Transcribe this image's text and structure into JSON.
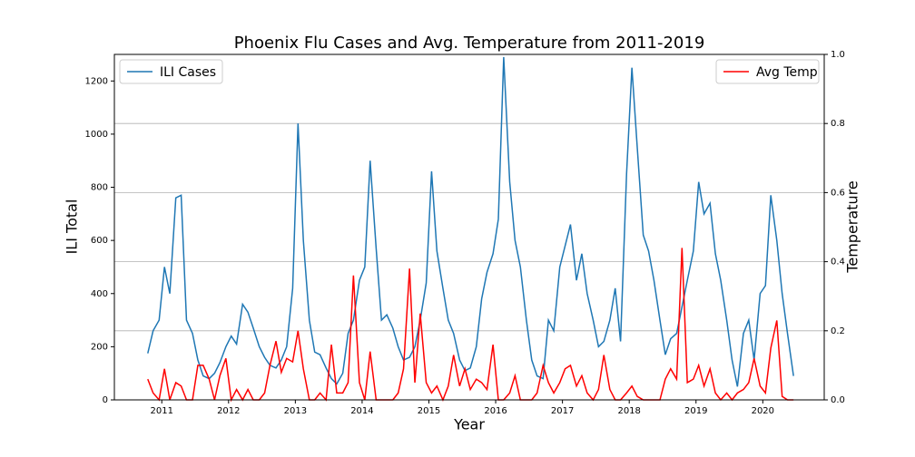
{
  "chart_data": {
    "type": "line",
    "title": "Phoenix Flu Cases and Avg. Temperature from 2011-2019",
    "x_label": "Year",
    "y_label": "ILI Total",
    "y2_label": "Temperature",
    "x": [
      2010.79,
      2010.87,
      2010.96,
      2011.04,
      2011.12,
      2011.21,
      2011.29,
      2011.37,
      2011.46,
      2011.54,
      2011.62,
      2011.71,
      2011.79,
      2011.87,
      2011.96,
      2012.04,
      2012.12,
      2012.21,
      2012.29,
      2012.37,
      2012.46,
      2012.54,
      2012.62,
      2012.71,
      2012.79,
      2012.87,
      2012.96,
      2013.04,
      2013.12,
      2013.21,
      2013.29,
      2013.37,
      2013.46,
      2013.54,
      2013.62,
      2013.71,
      2013.79,
      2013.87,
      2013.96,
      2014.04,
      2014.12,
      2014.21,
      2014.29,
      2014.37,
      2014.46,
      2014.54,
      2014.62,
      2014.71,
      2014.79,
      2014.87,
      2014.96,
      2015.04,
      2015.12,
      2015.21,
      2015.29,
      2015.37,
      2015.46,
      2015.54,
      2015.62,
      2015.71,
      2015.79,
      2015.87,
      2015.96,
      2016.04,
      2016.12,
      2016.21,
      2016.29,
      2016.37,
      2016.46,
      2016.54,
      2016.62,
      2016.71,
      2016.79,
      2016.87,
      2016.96,
      2017.04,
      2017.12,
      2017.21,
      2017.29,
      2017.37,
      2017.46,
      2017.54,
      2017.62,
      2017.71,
      2017.79,
      2017.87,
      2017.96,
      2018.04,
      2018.12,
      2018.21,
      2018.29,
      2018.37,
      2018.46,
      2018.54,
      2018.62,
      2018.71,
      2018.79,
      2018.87,
      2018.96,
      2019.04,
      2019.12,
      2019.21,
      2019.29,
      2019.37,
      2019.46,
      2019.54,
      2019.62,
      2019.71,
      2019.79,
      2019.87,
      2019.96,
      2020.04,
      2020.12,
      2020.21,
      2020.29,
      2020.37,
      2020.46
    ],
    "series": [
      {
        "name": "ILI Cases",
        "color": "#1f77b4",
        "axis": "y",
        "values": [
          175,
          260,
          300,
          500,
          400,
          760,
          770,
          300,
          250,
          150,
          90,
          80,
          100,
          140,
          200,
          240,
          210,
          360,
          330,
          270,
          200,
          160,
          130,
          120,
          150,
          200,
          420,
          1040,
          600,
          300,
          180,
          170,
          120,
          80,
          60,
          100,
          250,
          300,
          450,
          500,
          900,
          570,
          300,
          320,
          270,
          200,
          150,
          160,
          200,
          300,
          440,
          860,
          560,
          420,
          300,
          250,
          150,
          110,
          120,
          200,
          380,
          480,
          550,
          680,
          1290,
          820,
          600,
          500,
          300,
          150,
          90,
          80,
          300,
          260,
          500,
          580,
          660,
          450,
          550,
          400,
          300,
          200,
          220,
          300,
          420,
          220,
          850,
          1250,
          950,
          620,
          560,
          450,
          300,
          170,
          230,
          250,
          350,
          450,
          560,
          820,
          700,
          740,
          550,
          450,
          300,
          150,
          50,
          250,
          300,
          150,
          400,
          430,
          770,
          600,
          400,
          250,
          90
        ]
      },
      {
        "name": "Avg Temp",
        "color": "#ff0000",
        "axis": "y2",
        "values": [
          0.06,
          0.02,
          0,
          0.09,
          0,
          0.05,
          0.04,
          0,
          0,
          0.1,
          0.1,
          0.06,
          0,
          0.07,
          0.12,
          0,
          0.03,
          0,
          0.03,
          0,
          0,
          0.02,
          0.1,
          0.17,
          0.08,
          0.12,
          0.11,
          0.2,
          0.09,
          0,
          0,
          0.02,
          0,
          0.16,
          0.02,
          0.02,
          0.05,
          0.36,
          0.05,
          0,
          0.14,
          0,
          0,
          0,
          0,
          0.02,
          0.09,
          0.38,
          0.05,
          0.25,
          0.05,
          0.02,
          0.04,
          0,
          0.04,
          0.13,
          0.04,
          0.09,
          0.03,
          0.06,
          0.05,
          0.03,
          0.16,
          0,
          0,
          0.02,
          0.07,
          0,
          0,
          0,
          0.02,
          0.1,
          0.05,
          0.02,
          0.05,
          0.09,
          0.1,
          0.04,
          0.07,
          0.02,
          0,
          0.03,
          0.13,
          0.03,
          0,
          0,
          0.02,
          0.04,
          0.01,
          0,
          0,
          0,
          0,
          0.06,
          0.09,
          0.06,
          0.44,
          0.05,
          0.06,
          0.1,
          0.04,
          0.09,
          0.02,
          0,
          0.02,
          0,
          0.02,
          0.03,
          0.05,
          0.12,
          0.04,
          0.02,
          0.15,
          0.23,
          0.01,
          0,
          0
        ]
      }
    ],
    "xlim": [
      2010.29,
      2020.92
    ],
    "xticks": [
      2011,
      2012,
      2013,
      2014,
      2015,
      2016,
      2017,
      2018,
      2019,
      2020
    ],
    "ylim": [
      0,
      1300
    ],
    "yticks": [
      0,
      200,
      400,
      600,
      800,
      1000,
      1200
    ],
    "y2lim": [
      0,
      1
    ],
    "y2ticks": [
      {
        "value": 0,
        "label": "0.0"
      },
      0.2,
      0.4,
      0.6,
      0.8,
      {
        "value": 1,
        "label": "1.0"
      }
    ],
    "grid": "y2",
    "legend": [
      "upper left",
      "upper right"
    ]
  }
}
